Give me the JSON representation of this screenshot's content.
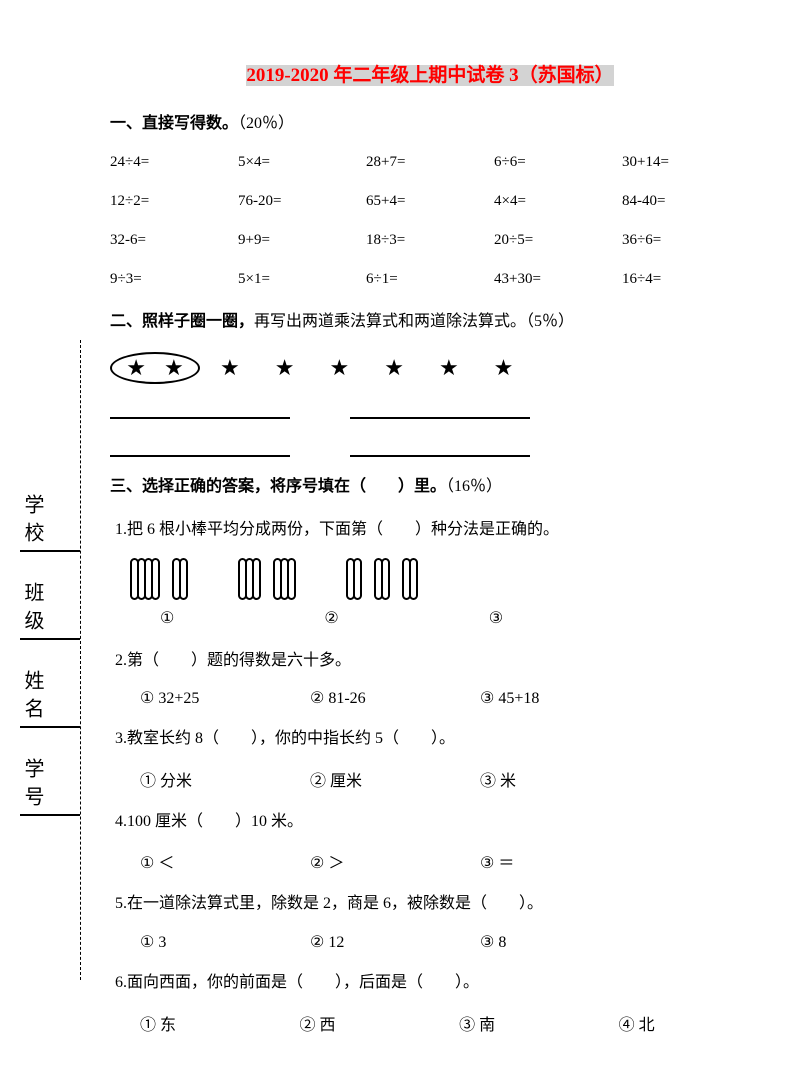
{
  "title_highlight": "2019-2020 年二年级上期中试卷 3（苏国标）",
  "sidebar": {
    "labels": [
      "学校",
      "班级",
      "姓名",
      "学号"
    ]
  },
  "section1": {
    "header_bold": "一、直接写得数。",
    "header_score": "（20％）",
    "rows": [
      [
        "24÷4=",
        "5×4=",
        "28+7=",
        "6÷6=",
        "30+14="
      ],
      [
        "12÷2=",
        "76-20=",
        "65+4=",
        "4×4=",
        "84-40="
      ],
      [
        "32-6=",
        "9+9=",
        "18÷3=",
        "20÷5=",
        "36÷6="
      ],
      [
        "9÷3=",
        "5×1=",
        "6÷1=",
        "43+30=",
        "16÷4="
      ]
    ]
  },
  "section2": {
    "header_bold": "二、照样子圈一圈，",
    "header_rest": "再写出两道乘法算式和两道除法算式。（5％）"
  },
  "section3": {
    "header_bold": "三、选择正确的答案，将序号填在（　　）里。",
    "header_score": "（16％）",
    "q1": "1.把 6 根小棒平均分成两份，下面第（　　）种分法是正确的。",
    "q1_opts": [
      "①",
      "②",
      "③"
    ],
    "q2": "2.第（　　）题的得数是六十多。",
    "q2_opts": [
      "① 32+25",
      "② 81-26",
      "③ 45+18"
    ],
    "q3": "3.教室长约 8（　　），你的中指长约 5（　　）。",
    "q3_opts": [
      "① 分米",
      "② 厘米",
      "③ 米"
    ],
    "q4": "4.100 厘米（　　）10 米。",
    "q4_opts": [
      "① ＜",
      "② ＞",
      "③ ＝"
    ],
    "q5": "5.在一道除法算式里，除数是 2，商是 6，被除数是（　　）。",
    "q5_opts": [
      "① 3",
      "② 12",
      "③ 8"
    ],
    "q6": "6.面向西面，你的前面是（　　），后面是（　　）。",
    "q6_opts": [
      "① 东",
      "② 西",
      "③ 南",
      "④ 北"
    ]
  },
  "colors": {
    "title_text": "#ff0000",
    "title_bg": "#d3d3d3",
    "text": "#000000",
    "bg": "#ffffff"
  }
}
